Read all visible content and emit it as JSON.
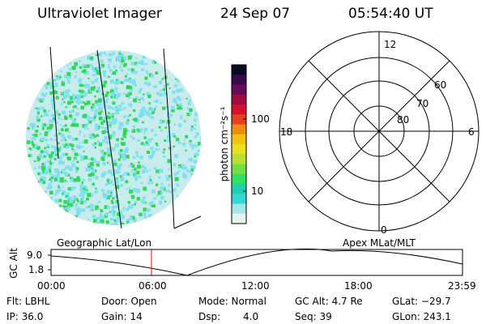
{
  "header": {
    "title": "Ultraviolet Imager",
    "date": "24 Sep 07",
    "time": "05:54:40 UT"
  },
  "colorbar": {
    "unit": "photon cm⁻²s⁻¹",
    "ticks": [
      "100",
      "10"
    ],
    "colors": [
      "#0a0a24",
      "#3a0a4a",
      "#6a0a5a",
      "#a00a40",
      "#d4102a",
      "#e8401e",
      "#f08a10",
      "#f2c410",
      "#e8e020",
      "#b8e030",
      "#70e040",
      "#30e060",
      "#20d0b0",
      "#30d8d8",
      "#a0e8e8",
      "#e4f2f2"
    ]
  },
  "image_panel": {
    "colors": {
      "land_blue": "#7fe0f0",
      "land_green": "#30d858",
      "sea": "#c8ecec"
    }
  },
  "polar_grid": {
    "mlt_labels": [
      "12",
      "18",
      "6",
      "0"
    ],
    "lat_labels": [
      "60",
      "70",
      "80"
    ]
  },
  "timeline": {
    "left_label": "Geographic Lat/Lon",
    "right_label": "Apex MLat/MLT",
    "axis_label": "GC Alt",
    "y_ticks": [
      "9.0",
      "1.8"
    ],
    "x_ticks": [
      "00:00",
      "06:00",
      "12:00",
      "18:00",
      "23:59"
    ],
    "current_marker_color": "#ff0000"
  },
  "status": {
    "flt": "Flt: LBHL",
    "door": "Door: Open",
    "mode": "Mode: Normal",
    "gc_alt": "GC Alt: 4.7 Re",
    "glat": "GLat: −29.7",
    "ip": "IP: 36.0",
    "gain": "Gain: 14",
    "dsp_label": "Dsp:",
    "dsp_value": "4.0",
    "seq": "Seq: 39",
    "glon": "GLon: 243.1"
  }
}
